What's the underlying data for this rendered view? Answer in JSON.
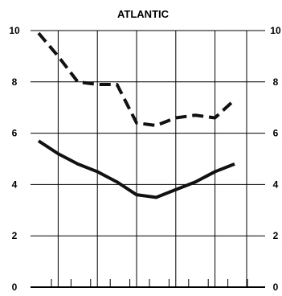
{
  "chart_data": {
    "type": "line",
    "title": "ATLANTIC",
    "xlabel": "",
    "ylabel": "",
    "ylim": [
      0,
      10
    ],
    "yticks": [
      "0",
      "2",
      "4",
      "6",
      "8",
      "10"
    ],
    "grid": true,
    "x": [
      0,
      1,
      2,
      3,
      4,
      5,
      6,
      7,
      8,
      9,
      10
    ],
    "series": [
      {
        "style": "dashed",
        "color": "#111111",
        "values": [
          9.9,
          9.0,
          8.0,
          7.9,
          7.9,
          6.4,
          6.3,
          6.6,
          6.7,
          6.6,
          7.3
        ]
      },
      {
        "style": "solid",
        "color": "#111111",
        "values": [
          5.7,
          5.2,
          4.8,
          4.5,
          4.1,
          3.6,
          3.5,
          3.8,
          4.1,
          4.5,
          4.8
        ]
      }
    ]
  }
}
